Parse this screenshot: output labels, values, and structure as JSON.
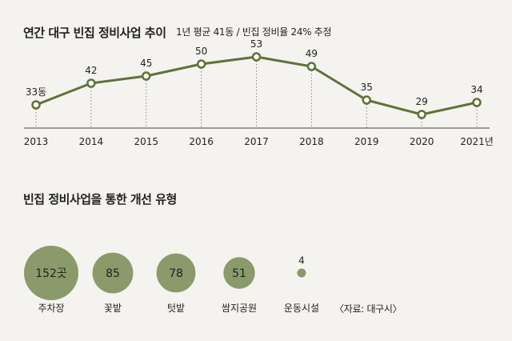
{
  "chart_data": [
    {
      "type": "line",
      "title": "연간 대구 빈집 정비사업 추이",
      "subtitle": "1년 평균 41동 / 빈집 정비율 24% 추정",
      "categories": [
        "2013",
        "2014",
        "2015",
        "2016",
        "2017",
        "2018",
        "2019",
        "2020",
        "2021년"
      ],
      "series": [
        {
          "values": [
            33,
            42,
            45,
            50,
            53,
            49,
            35,
            29,
            34
          ]
        }
      ],
      "data_labels": [
        "33동",
        "42",
        "45",
        "50",
        "53",
        "49",
        "35",
        "29",
        "34"
      ],
      "ylim": [
        20,
        60
      ],
      "line_color": "#5d7339",
      "marker_fill": "#ffffff"
    },
    {
      "type": "bubble",
      "title": "빈집 정비사업을 통한 개선 유형",
      "categories": [
        "주차장",
        "꽃밭",
        "텃밭",
        "쌈지공원",
        "운동시설"
      ],
      "values": [
        152,
        85,
        78,
        51,
        4
      ],
      "data_labels": [
        "152곳",
        "85",
        "78",
        "51",
        "4"
      ],
      "bubble_color": "#8a9a6b",
      "source": "〈자료: 대구시〉"
    }
  ]
}
